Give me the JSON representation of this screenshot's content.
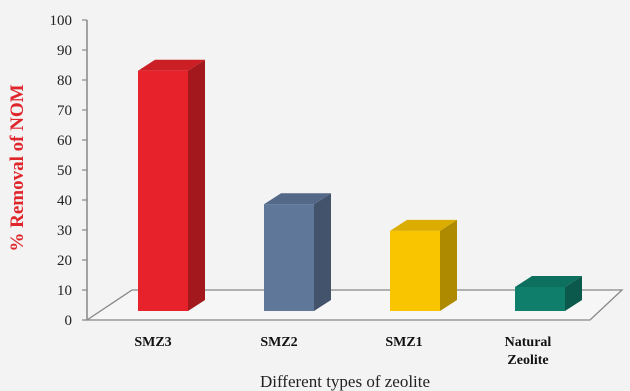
{
  "chart_data": {
    "type": "bar",
    "categories": [
      "SMZ3",
      "SMZ2",
      "SMZ1",
      "Natural Zeolite"
    ],
    "category_lines": [
      [
        "SMZ3"
      ],
      [
        "SMZ2"
      ],
      [
        "SMZ1"
      ],
      [
        "Natural",
        "Zeolite"
      ]
    ],
    "values": [
      90,
      40,
      30,
      9
    ],
    "colors": [
      "#e8222a",
      "#5f7799",
      "#f8c500",
      "#0f7f6c"
    ],
    "xlabel": "Different  types of zeolite",
    "ylabel": "% Removal of NOM",
    "ylabel_color": "#e0262d",
    "ylim": [
      0,
      100
    ],
    "yticks": [
      0,
      10,
      20,
      30,
      40,
      50,
      60,
      70,
      80,
      90,
      100
    ],
    "style": "3d",
    "grid": false
  }
}
